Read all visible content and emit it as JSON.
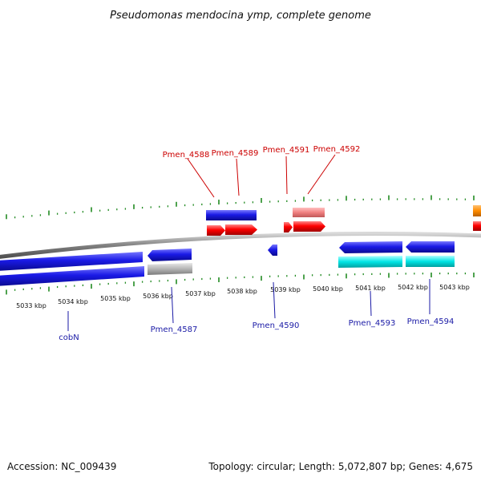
{
  "title": "Pseudomonas mendocina ymp, complete genome",
  "footer": {
    "accession": "Accession: NC_009439",
    "summary": "Topology: circular; Length: 5,072,807 bp; Genes: 4,675"
  },
  "colors": {
    "backbone": "#808080",
    "tick": "#228b22",
    "forward_label": "#cc0000",
    "reverse_label": "#1a1aa6",
    "forward_cds": "#ff0000",
    "forward_rna": "#f08080",
    "reverse_cds": "#1a1ae6",
    "reverse_rna": "#00e5e5",
    "pseudo": "#b4b4b4",
    "highlight": "#ff8c00"
  },
  "scale": {
    "unit": "kbp",
    "labels": [
      "5033 kbp",
      "5034 kbp",
      "5035 kbp",
      "5036 kbp",
      "5037 kbp",
      "5038 kbp",
      "5039 kbp",
      "5040 kbp",
      "5041 kbp",
      "5042 kbp",
      "5043 kbp"
    ]
  },
  "gene_labels": {
    "forward": [
      "Pmen_4588",
      "Pmen_4589",
      "Pmen_4591",
      "Pmen_4592"
    ],
    "reverse": [
      "cobN",
      "Pmen_4587",
      "Pmen_4590",
      "Pmen_4593",
      "Pmen_4594"
    ]
  }
}
